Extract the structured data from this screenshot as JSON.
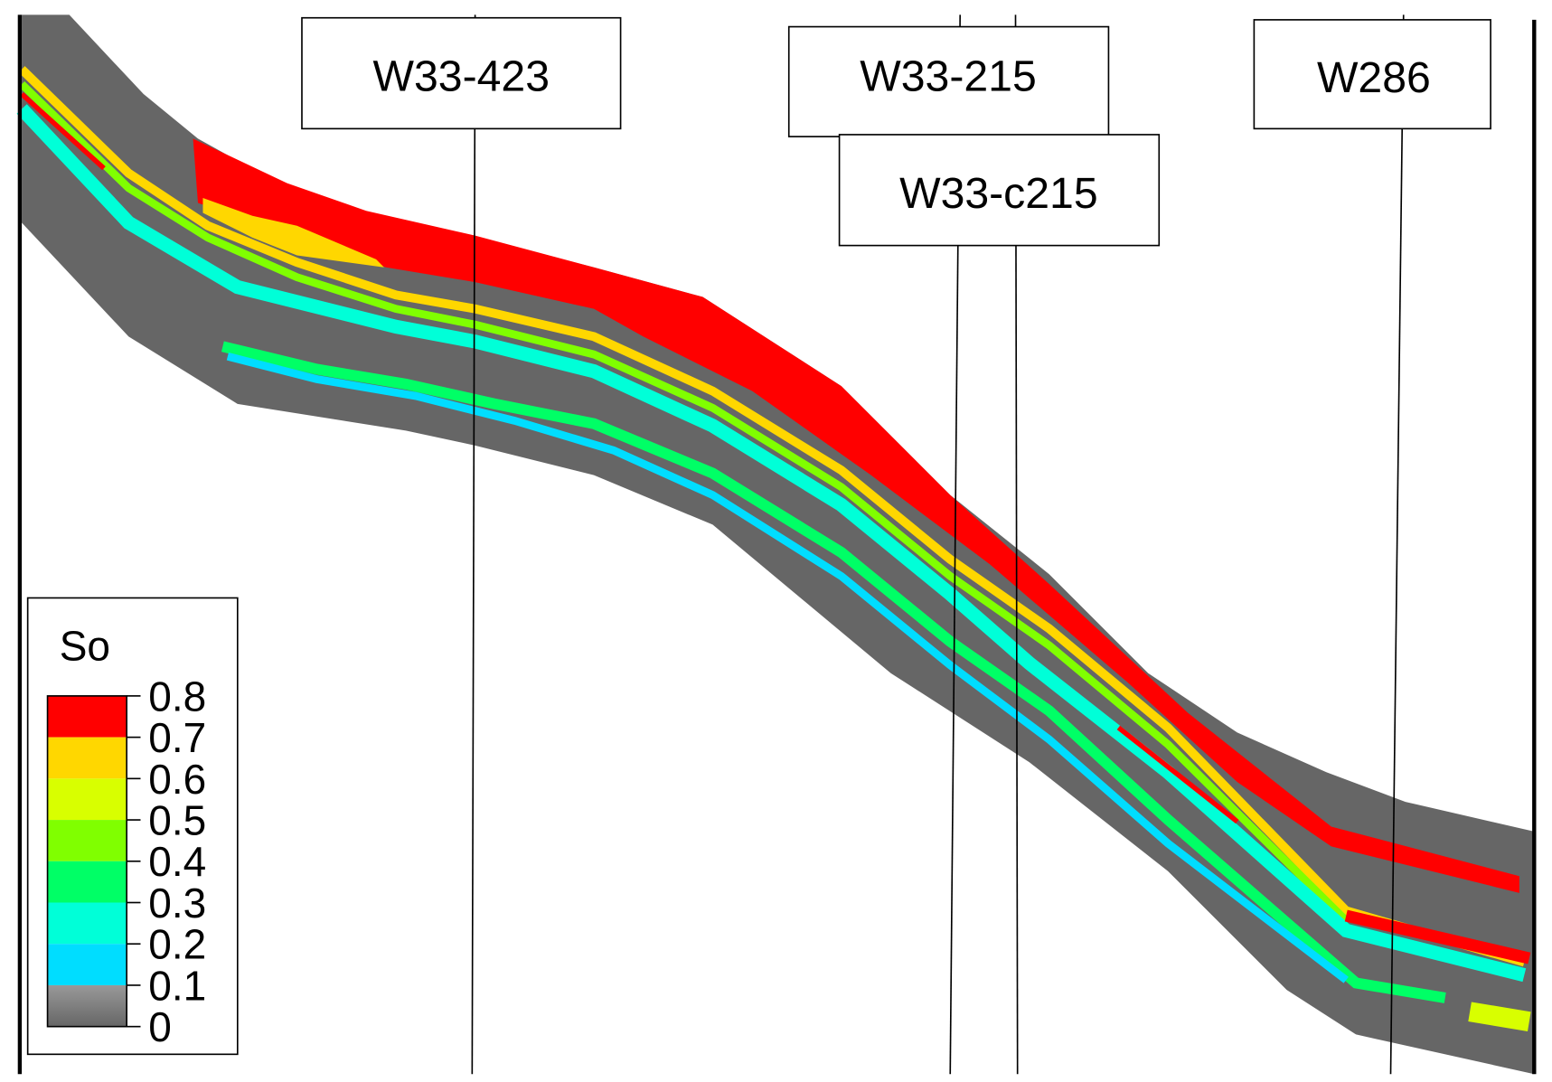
{
  "wells": [
    {
      "name": "W33-423"
    },
    {
      "name": "W33-215"
    },
    {
      "name": "W33-c215"
    },
    {
      "name": "W286"
    }
  ],
  "legend": {
    "title": "So",
    "ticks": [
      "0.8",
      "0.7",
      "0.6",
      "0.5",
      "0.4",
      "0.3",
      "0.2",
      "0.1",
      "0"
    ],
    "bins": [
      {
        "from": 0.7,
        "to": 0.8,
        "color": "#ff0000"
      },
      {
        "from": 0.6,
        "to": 0.7,
        "color": "#ffd700"
      },
      {
        "from": 0.5,
        "to": 0.6,
        "color": "#d8ff00"
      },
      {
        "from": 0.4,
        "to": 0.5,
        "color": "#80ff00"
      },
      {
        "from": 0.3,
        "to": 0.4,
        "color": "#00ff66"
      },
      {
        "from": 0.2,
        "to": 0.3,
        "color": "#00ffd8"
      },
      {
        "from": 0.1,
        "to": 0.2,
        "color": "#00ddff"
      },
      {
        "from": 0.0,
        "to": 0.1,
        "color": "#777777"
      }
    ]
  },
  "colors": {
    "background_rock": "#666666",
    "high_so": "#ff0000",
    "mid_so": "#ffd700",
    "low_so": "#00ffd8"
  }
}
